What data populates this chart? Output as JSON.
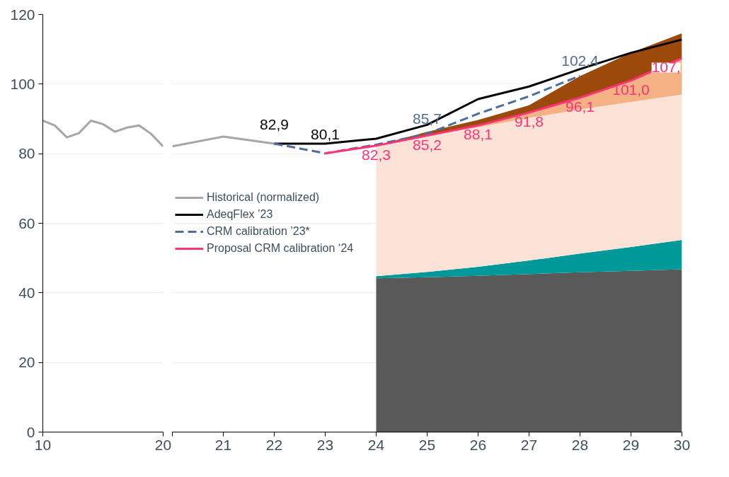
{
  "chart_data": [
    {
      "type": "line",
      "xlim": [
        10,
        20
      ],
      "xticks": [
        10,
        20
      ],
      "ylim": [
        0,
        120
      ],
      "yticks": [
        0,
        20,
        40,
        60,
        80,
        100,
        120
      ],
      "grid": "y",
      "legend": false,
      "series": [
        {
          "color": "#a6a6a6",
          "x": [
            10,
            11,
            12,
            13,
            14,
            15,
            16,
            17,
            18,
            19,
            20
          ],
          "values": [
            89.5,
            88.1,
            84.7,
            85.9,
            89.5,
            88.5,
            86.3,
            87.5,
            88.1,
            85.7,
            82.1
          ]
        }
      ]
    },
    {
      "type": "line",
      "xlim": [
        20,
        30
      ],
      "xticks": [
        {
          "value": 20,
          "label": null
        },
        21,
        22,
        23,
        24,
        25,
        26,
        27,
        28,
        29,
        30
      ],
      "ylim": [
        0,
        120
      ],
      "yticks": [
        0,
        20,
        40,
        60,
        80,
        100,
        120
      ],
      "grid": "y",
      "tick_labels": "x",
      "legend": "left",
      "stacked": true,
      "annotations": [
        {
          "text": "82,9",
          "x": 22,
          "y": 82.9
        },
        {
          "text": "80,1",
          "x": 23,
          "y": 80.1
        }
      ],
      "series": [
        {
          "type": "area",
          "color": "#595959",
          "x": [
            24,
            25,
            26,
            27,
            28,
            29,
            30
          ],
          "values": [
            44.2,
            44.5,
            44.9,
            45.4,
            45.9,
            46.3,
            46.8
          ]
        },
        {
          "type": "area",
          "color": "#009999",
          "x": [
            24,
            25,
            26,
            27,
            28,
            29,
            30
          ],
          "values": [
            0.6,
            1.5,
            2.6,
            3.9,
            5.4,
            6.9,
            8.4
          ]
        },
        {
          "type": "area",
          "color": "#fae3d6",
          "x": [
            24,
            25,
            26,
            27,
            28,
            29,
            30
          ],
          "values": [
            37.5,
            39.2,
            40.1,
            41.0,
            41.4,
            41.7,
            41.8
          ]
        },
        {
          "type": "area",
          "color": "#f4b183",
          "x": [
            24,
            25,
            26,
            27,
            28,
            29,
            30
          ],
          "values": [
            0,
            0,
            0.5,
            1.5,
            3.4,
            6.1,
            10.4
          ]
        },
        {
          "type": "area",
          "color": "#9c4a0c",
          "x": [
            24,
            25,
            26,
            27,
            28,
            29,
            30
          ],
          "values": [
            0,
            1.1,
            1.6,
            2.1,
            6.2,
            8.0,
            7.2
          ]
        },
        {
          "name": "Historical (normalized)",
          "color": "#a6a6a6",
          "x": [
            20,
            21,
            22
          ],
          "values": [
            82.1,
            84.9,
            82.9
          ]
        },
        {
          "name": "AdeqFlex ’23",
          "color": "#000000",
          "x": [
            22,
            23,
            24,
            25,
            26,
            27,
            28,
            29,
            30
          ],
          "values": [
            82.9,
            82.9,
            84.3,
            88.3,
            95.7,
            99.3,
            104.3,
            109.0,
            112.8
          ]
        },
        {
          "name": "CRM calibration ’23*",
          "color": "#4f6d9a",
          "line_style": "dashed",
          "x": [
            22,
            23,
            24,
            25,
            26,
            27,
            28
          ],
          "values": [
            82.9,
            80.1,
            82.6,
            85.7,
            91.5,
            96.5,
            102.4
          ],
          "value_labels": [
            null,
            null,
            null,
            "85,7",
            null,
            null,
            "102,4"
          ]
        },
        {
          "name": "Proposal CRM calibration ‘24",
          "color": "#ff3377",
          "x": [
            23,
            24,
            25,
            26,
            27,
            28,
            29,
            30
          ],
          "values": [
            80.1,
            82.3,
            85.2,
            88.1,
            91.8,
            96.1,
            101.0,
            107.4
          ],
          "value_labels": [
            null,
            "82,3",
            "85,2",
            "88,1",
            "91,8",
            "96,1",
            "101,0",
            "107,"
          ]
        }
      ]
    }
  ]
}
